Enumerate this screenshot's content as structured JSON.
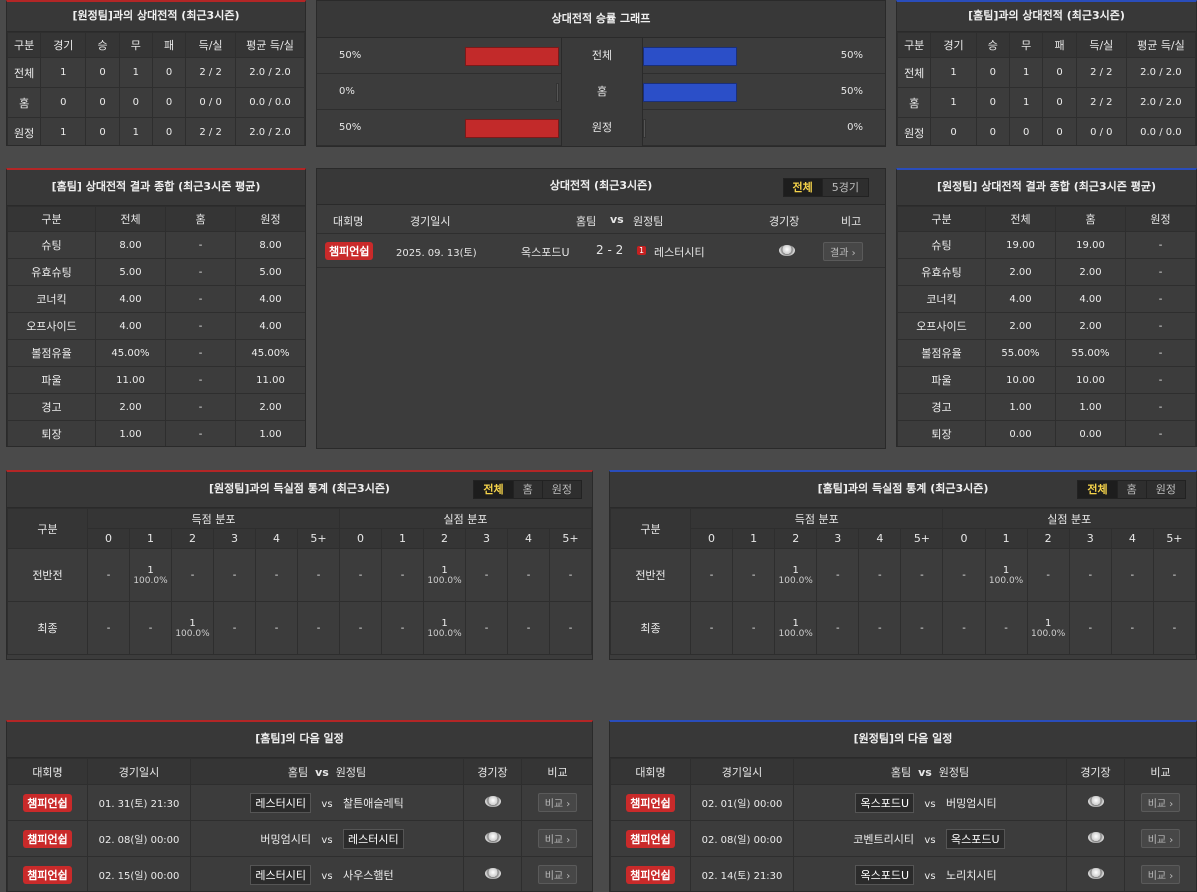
{
  "h2h_away": {
    "title": "[원정팀]과의 상대전적 (최근3시즌)",
    "headers": [
      "구분",
      "경기",
      "승",
      "무",
      "패",
      "득/실",
      "평균 득/실"
    ],
    "rows": [
      [
        "전체",
        "1",
        "0",
        "1",
        "0",
        "2 / 2",
        "2.0 / 2.0"
      ],
      [
        "홈",
        "0",
        "0",
        "0",
        "0",
        "0 / 0",
        "0.0 / 0.0"
      ],
      [
        "원정",
        "1",
        "0",
        "1",
        "0",
        "2 / 2",
        "2.0 / 2.0"
      ]
    ]
  },
  "h2h_home": {
    "title": "[홈팀]과의 상대전적 (최근3시즌)",
    "headers": [
      "구분",
      "경기",
      "승",
      "무",
      "패",
      "득/실",
      "평균 득/실"
    ],
    "rows": [
      [
        "전체",
        "1",
        "0",
        "1",
        "0",
        "2 / 2",
        "2.0 / 2.0"
      ],
      [
        "홈",
        "1",
        "0",
        "1",
        "0",
        "2 / 2",
        "2.0 / 2.0"
      ],
      [
        "원정",
        "0",
        "0",
        "0",
        "0",
        "0 / 0",
        "0.0 / 0.0"
      ]
    ]
  },
  "win_graph": {
    "title": "상대전적 승률 그래프",
    "rows": [
      {
        "label": "전체",
        "left_text": "50%",
        "right_text": "50%",
        "left": 0.5,
        "right": 0.5
      },
      {
        "label": "홈",
        "left_text": "0%",
        "right_text": "50%",
        "left": 0.0,
        "right": 0.5
      },
      {
        "label": "원정",
        "left_text": "50%",
        "right_text": "0%",
        "left": 0.5,
        "right": 0.0
      }
    ],
    "colors": {
      "left": "#c22a2a",
      "right": "#2b4fc8"
    }
  },
  "home_summary": {
    "title": "[홈팀] 상대전적 결과 종합 (최근3시즌 평균)",
    "headers": [
      "구분",
      "전체",
      "홈",
      "원정"
    ],
    "rows": [
      [
        "슈팅",
        "8.00",
        "-",
        "8.00"
      ],
      [
        "유효슈팅",
        "5.00",
        "-",
        "5.00"
      ],
      [
        "코너킥",
        "4.00",
        "-",
        "4.00"
      ],
      [
        "오프사이드",
        "4.00",
        "-",
        "4.00"
      ],
      [
        "볼점유율",
        "45.00%",
        "-",
        "45.00%"
      ],
      [
        "파울",
        "11.00",
        "-",
        "11.00"
      ],
      [
        "경고",
        "2.00",
        "-",
        "2.00"
      ],
      [
        "퇴장",
        "1.00",
        "-",
        "1.00"
      ]
    ]
  },
  "away_summary": {
    "title": "[원정팀] 상대전적 결과 종합 (최근3시즌 평균)",
    "headers": [
      "구분",
      "전체",
      "홈",
      "원정"
    ],
    "rows": [
      [
        "슈팅",
        "19.00",
        "19.00",
        "-"
      ],
      [
        "유효슈팅",
        "2.00",
        "2.00",
        "-"
      ],
      [
        "코너킥",
        "4.00",
        "4.00",
        "-"
      ],
      [
        "오프사이드",
        "2.00",
        "2.00",
        "-"
      ],
      [
        "볼점유율",
        "55.00%",
        "55.00%",
        "-"
      ],
      [
        "파울",
        "10.00",
        "10.00",
        "-"
      ],
      [
        "경고",
        "1.00",
        "1.00",
        "-"
      ],
      [
        "퇴장",
        "0.00",
        "0.00",
        "-"
      ]
    ]
  },
  "h2h_list": {
    "title": "상대전적 (최근3시즌)",
    "toggle": [
      "전체",
      "5경기"
    ],
    "headers": {
      "league": "대회명",
      "date": "경기일시",
      "home": "홈팀",
      "vs": "vs",
      "away": "원정팀",
      "stadium": "경기장",
      "note": "비고"
    },
    "match": {
      "league": "챔피언쉽",
      "date": "2025. 09. 13(토)",
      "home": "옥스포드U",
      "score": "2 - 2",
      "red": "1",
      "away": "레스터시티",
      "note": "결과"
    }
  },
  "goals_away": {
    "title": "[원정팀]과의 득실점 통계 (최근3시즌)",
    "toggle": [
      "전체",
      "홈",
      "원정"
    ],
    "label": "구분",
    "group_for": "득점 분포",
    "group_against": "실점 분포",
    "cols": [
      "0",
      "1",
      "2",
      "3",
      "4",
      "5+"
    ],
    "rows": [
      {
        "name": "전반전",
        "cells": [
          "-",
          "1|100.0%",
          "-",
          "-",
          "-",
          "-",
          "-",
          "-",
          "1|100.0%",
          "-",
          "-",
          "-"
        ]
      },
      {
        "name": "최종",
        "cells": [
          "-",
          "-",
          "1|100.0%",
          "-",
          "-",
          "-",
          "-",
          "-",
          "1|100.0%",
          "-",
          "-",
          "-"
        ]
      }
    ]
  },
  "goals_home": {
    "title": "[홈팀]과의 득실점 통계 (최근3시즌)",
    "toggle": [
      "전체",
      "홈",
      "원정"
    ],
    "label": "구분",
    "group_for": "득점 분포",
    "group_against": "실점 분포",
    "cols": [
      "0",
      "1",
      "2",
      "3",
      "4",
      "5+"
    ],
    "rows": [
      {
        "name": "전반전",
        "cells": [
          "-",
          "-",
          "1|100.0%",
          "-",
          "-",
          "-",
          "-",
          "1|100.0%",
          "-",
          "-",
          "-",
          "-"
        ]
      },
      {
        "name": "최종",
        "cells": [
          "-",
          "-",
          "1|100.0%",
          "-",
          "-",
          "-",
          "-",
          "-",
          "1|100.0%",
          "-",
          "-",
          "-"
        ]
      }
    ]
  },
  "next_home": {
    "title": "[홈팀]의 다음 일정",
    "headers": {
      "league": "대회명",
      "date": "경기일시",
      "home": "홈팀",
      "vs": "vs",
      "away": "원정팀",
      "stadium": "경기장",
      "note": "비교"
    },
    "rows": [
      {
        "league": "챔피언쉽",
        "date": "01. 31(토) 21:30",
        "home": "레스터시티",
        "away": "찰튼애슬레틱",
        "hl": "home",
        "note": "비교"
      },
      {
        "league": "챔피언쉽",
        "date": "02. 08(일) 00:00",
        "home": "버밍엄시티",
        "away": "레스터시티",
        "hl": "away",
        "note": "비교"
      },
      {
        "league": "챔피언쉽",
        "date": "02. 15(일) 00:00",
        "home": "레스터시티",
        "away": "사우스햄턴",
        "hl": "home",
        "note": "비교"
      }
    ]
  },
  "next_away": {
    "title": "[원정팀]의 다음 일정",
    "headers": {
      "league": "대회명",
      "date": "경기일시",
      "home": "홈팀",
      "vs": "vs",
      "away": "원정팀",
      "stadium": "경기장",
      "note": "비교"
    },
    "rows": [
      {
        "league": "챔피언쉽",
        "date": "02. 01(일) 00:00",
        "home": "옥스포드U",
        "away": "버밍엄시티",
        "hl": "home",
        "note": "비교"
      },
      {
        "league": "챔피언쉽",
        "date": "02. 08(일) 00:00",
        "home": "코벤트리시티",
        "away": "옥스포드U",
        "hl": "away",
        "note": "비교"
      },
      {
        "league": "챔피언쉽",
        "date": "02. 14(토) 21:30",
        "home": "옥스포드U",
        "away": "노리치시티",
        "hl": "home",
        "note": "비교"
      }
    ]
  }
}
